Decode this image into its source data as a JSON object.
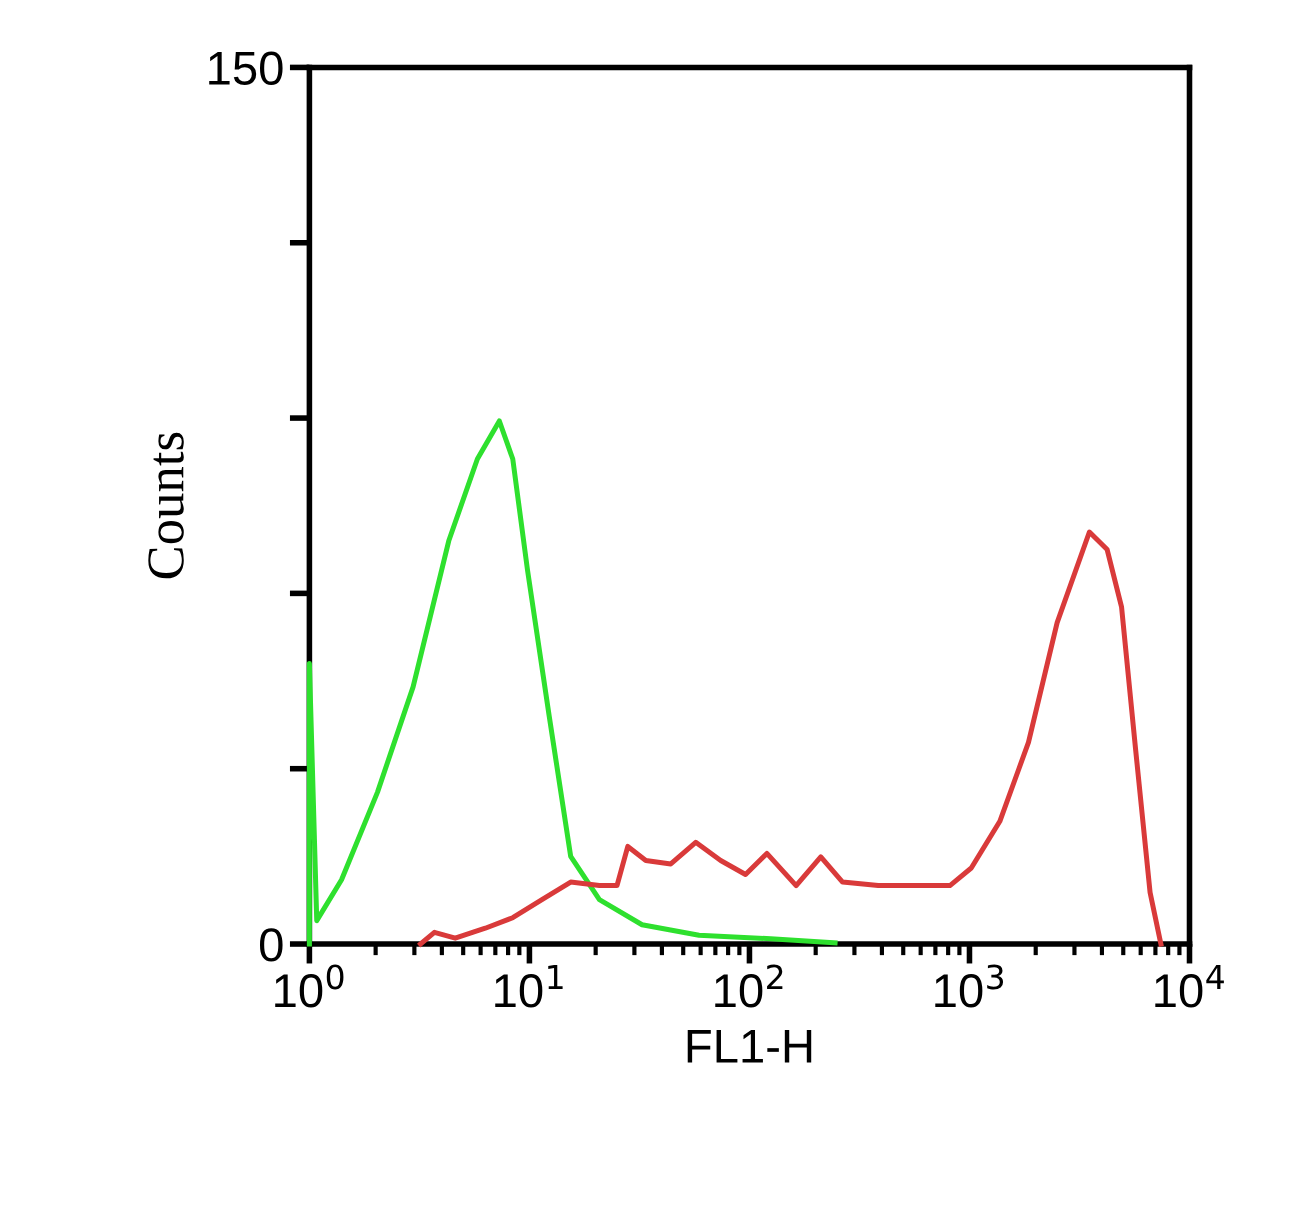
{
  "chart_data": {
    "type": "line",
    "xlabel": "FL1-H",
    "ylabel": "Counts",
    "log": "x",
    "grid": false,
    "legend": false,
    "xlim": [
      1,
      10000
    ],
    "ylim": [
      0,
      150
    ],
    "xticks": [
      {
        "value": 1,
        "label": "10$^{0}$"
      },
      {
        "value": 10,
        "label": "10$^{1}$"
      },
      {
        "value": 100,
        "label": "10$^{2}$"
      },
      {
        "value": 1000,
        "label": "10$^{3}$"
      },
      {
        "value": 10000,
        "label": "10$^{4}$"
      }
    ],
    "yticks": [
      0,
      {
        "value": 30,
        "label": null
      },
      {
        "value": 60,
        "label": null
      },
      {
        "value": 90,
        "label": null
      },
      {
        "value": 120,
        "label": null
      },
      150
    ],
    "series": [
      {
        "color": "#2ee02e",
        "x": [
          1,
          1,
          1.08,
          1.4,
          2.04,
          2.96,
          4.3,
          5.8,
          7.3,
          8.4,
          9.8,
          12.3,
          15.4,
          20.8,
          32.5,
          59,
          125,
          245
        ],
        "values": [
          0,
          48,
          4,
          11,
          26,
          44,
          69,
          83,
          89.5,
          83,
          64,
          39,
          15,
          7.6,
          3.3,
          1.5,
          0.9,
          0.2
        ]
      },
      {
        "color": "#d93a3a",
        "x": [
          3.2,
          3.7,
          4.6,
          6.3,
          8.4,
          11.4,
          15.4,
          20.8,
          25,
          28,
          33.8,
          43.9,
          57,
          74,
          96,
          120,
          163,
          211,
          265,
          385,
          815,
          1019,
          1374,
          1854,
          2503,
          3508,
          4224,
          4910,
          5700,
          6620,
          7413
        ],
        "values": [
          0,
          2,
          1,
          2.7,
          4.5,
          7.6,
          10.6,
          10,
          10,
          16.7,
          14.3,
          13.7,
          17.4,
          14.3,
          11.9,
          15.5,
          10,
          14.9,
          10.6,
          10,
          10,
          13,
          21,
          34.5,
          55,
          70.5,
          67.5,
          57.7,
          33,
          8.8,
          0
        ]
      }
    ]
  }
}
